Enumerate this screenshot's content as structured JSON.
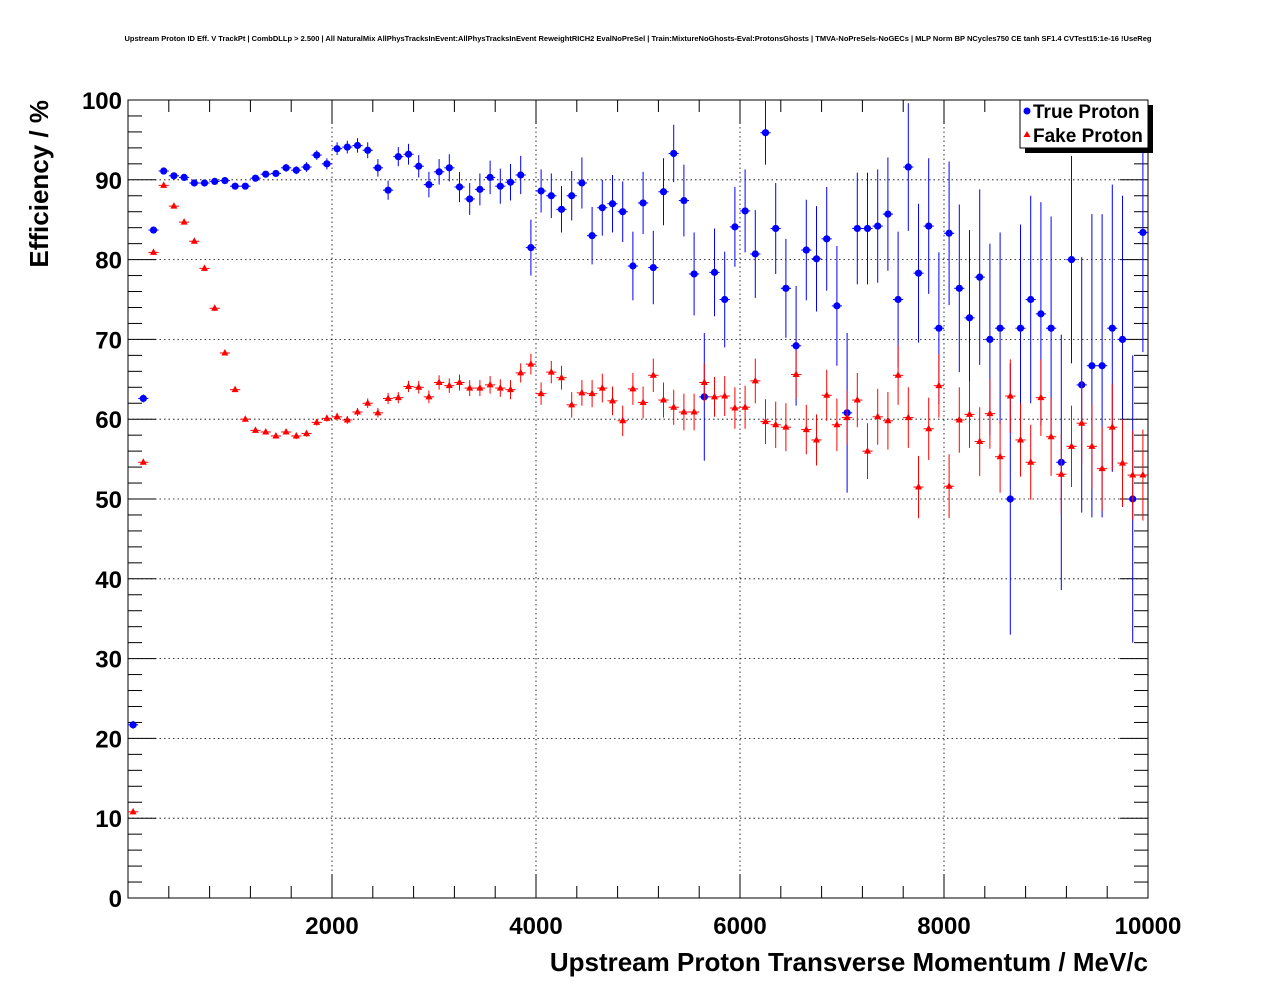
{
  "chart_data": {
    "type": "scatter",
    "title": "Upstream Proton ID Eff. V TrackPt | CombDLLp > 2.500 | All NaturalMix AllPhysTracksInEvent:AllPhysTracksInEvent ReweightRICH2 EvalNoPreSel | Train:MixtureNoGhosts-Eval:ProtonsGhosts | TMVA-NoPreSels-NoGECs | MLP Norm BP NCycles750 CE tanh SF1.4 CVTest15:1e-16 !UseReg",
    "xlabel": "Upstream Proton Transverse Momentum / MeV/c",
    "ylabel": "Efficiency / %",
    "xlim": [
      0,
      10000
    ],
    "ylim": [
      0,
      100
    ],
    "x_ticks": [
      2000,
      4000,
      6000,
      8000,
      10000
    ],
    "y_ticks": [
      0,
      10,
      20,
      30,
      40,
      50,
      60,
      70,
      80,
      90,
      100
    ],
    "grid": true,
    "legend_position": "top-right",
    "x": [
      50,
      150,
      250,
      350,
      450,
      550,
      650,
      750,
      850,
      950,
      1050,
      1150,
      1250,
      1350,
      1450,
      1550,
      1650,
      1750,
      1850,
      1950,
      2050,
      2150,
      2250,
      2350,
      2450,
      2550,
      2650,
      2750,
      2850,
      2950,
      3050,
      3150,
      3250,
      3350,
      3450,
      3550,
      3650,
      3750,
      3850,
      3950,
      4050,
      4150,
      4250,
      4350,
      4450,
      4550,
      4650,
      4750,
      4850,
      4950,
      5050,
      5150,
      5250,
      5350,
      5450,
      5550,
      5650,
      5750,
      5850,
      5950,
      6050,
      6150,
      6250,
      6350,
      6450,
      6550,
      6650,
      6750,
      6850,
      6950,
      7050,
      7150,
      7250,
      7350,
      7450,
      7550,
      7650,
      7750,
      7850,
      7950,
      8050,
      8150,
      8250,
      8350,
      8450,
      8550,
      8650,
      8750,
      8850,
      8950,
      9050,
      9150,
      9250,
      9350,
      9450,
      9550,
      9650,
      9750,
      9850,
      9950
    ],
    "series": [
      {
        "name": "True Proton",
        "color": "#0000ff",
        "marker": "circle",
        "values": [
          21.7,
          62.6,
          83.7,
          91.1,
          90.5,
          90.3,
          89.6,
          89.6,
          89.8,
          89.9,
          89.2,
          89.2,
          90.2,
          90.7,
          90.8,
          91.5,
          91.2,
          91.6,
          93.1,
          92.0,
          93.9,
          94.1,
          94.3,
          93.7,
          91.5,
          88.7,
          92.9,
          93.2,
          91.7,
          89.4,
          91.0,
          91.5,
          89.1,
          87.6,
          88.8,
          90.3,
          89.2,
          89.7,
          90.6,
          81.5,
          88.6,
          88.0,
          86.3,
          88.0,
          89.6,
          83.0,
          86.5,
          87.0,
          86.0,
          79.2,
          87.1,
          79.0,
          88.5,
          93.3,
          87.4,
          78.2,
          62.8,
          78.4,
          75.0,
          84.1,
          86.1,
          80.7,
          95.9,
          83.9,
          76.4,
          69.2,
          81.2,
          80.1,
          82.6,
          74.2,
          60.8,
          83.9,
          83.9,
          84.2,
          85.7,
          75.0,
          91.6,
          78.3,
          84.2,
          71.4,
          83.3,
          76.4,
          72.7,
          77.8,
          70.0,
          71.4,
          50.0,
          71.4,
          75.0,
          73.2,
          71.4,
          54.6,
          80.0,
          64.3,
          66.7,
          66.7,
          71.4,
          70.0,
          50.0,
          83.4
        ],
        "errors": [
          0.5,
          0.5,
          0.4,
          0.3,
          0.3,
          0.3,
          0.3,
          0.3,
          0.3,
          0.3,
          0.4,
          0.4,
          0.4,
          0.4,
          0.4,
          0.5,
          0.5,
          0.6,
          0.6,
          0.7,
          0.8,
          0.8,
          0.9,
          1.0,
          1.1,
          1.2,
          1.2,
          1.3,
          1.4,
          1.6,
          1.6,
          1.7,
          1.9,
          2.0,
          2.0,
          2.1,
          2.2,
          2.3,
          2.4,
          3.5,
          2.7,
          2.8,
          2.9,
          3.1,
          3.2,
          3.6,
          3.5,
          3.6,
          3.8,
          4.3,
          3.9,
          4.6,
          4.2,
          3.6,
          4.5,
          5.2,
          8.0,
          5.5,
          6.0,
          5.0,
          5.2,
          5.5,
          4.0,
          5.7,
          6.2,
          7.5,
          6.3,
          6.6,
          6.5,
          7.5,
          10.0,
          7.0,
          7.0,
          7.1,
          7.1,
          8.5,
          8.0,
          8.7,
          8.5,
          9.5,
          9.0,
          10.5,
          11.0,
          11.0,
          12.0,
          12.0,
          17.0,
          13.0,
          13.0,
          14.0,
          14.0,
          16.0,
          13.0,
          16.0,
          19.0,
          19.0,
          18.0,
          18.0,
          18.0,
          15.0
        ]
      },
      {
        "name": "Fake Proton",
        "color": "#ff0000",
        "marker": "triangle",
        "values": [
          10.8,
          54.6,
          80.9,
          89.3,
          86.7,
          84.7,
          82.3,
          78.9,
          73.9,
          68.3,
          63.7,
          60.0,
          58.6,
          58.4,
          57.9,
          58.4,
          57.9,
          58.2,
          59.6,
          60.1,
          60.3,
          59.9,
          60.9,
          62.0,
          60.8,
          62.6,
          62.7,
          64.1,
          64.0,
          62.8,
          64.6,
          64.2,
          64.6,
          63.9,
          63.9,
          64.3,
          63.9,
          63.7,
          65.8,
          66.9,
          63.2,
          65.9,
          65.2,
          61.8,
          63.3,
          63.2,
          63.9,
          62.3,
          59.8,
          63.8,
          62.1,
          65.5,
          62.4,
          61.5,
          60.9,
          60.9,
          64.6,
          62.8,
          62.9,
          61.4,
          61.5,
          64.8,
          59.7,
          59.3,
          59.0,
          65.6,
          58.7,
          57.4,
          63.0,
          59.3,
          60.2,
          62.4,
          56.0,
          60.3,
          59.8,
          65.5,
          60.2,
          51.5,
          58.8,
          64.2,
          51.6,
          59.9,
          60.6,
          57.2,
          60.7,
          55.3,
          62.9,
          57.4,
          54.6,
          62.7,
          57.8,
          53.1,
          56.6,
          59.5,
          56.6,
          53.8,
          59.0,
          54.5,
          53.0,
          53.0
        ],
        "errors": [
          0.3,
          0.3,
          0.3,
          0.3,
          0.3,
          0.3,
          0.3,
          0.3,
          0.3,
          0.3,
          0.3,
          0.3,
          0.3,
          0.3,
          0.3,
          0.3,
          0.4,
          0.4,
          0.4,
          0.4,
          0.5,
          0.5,
          0.5,
          0.6,
          0.6,
          0.7,
          0.7,
          0.7,
          0.8,
          0.8,
          0.9,
          0.9,
          1.0,
          1.0,
          1.0,
          1.1,
          1.1,
          1.2,
          1.2,
          1.3,
          1.4,
          1.4,
          1.5,
          1.6,
          1.6,
          1.7,
          1.8,
          1.8,
          1.9,
          2.0,
          2.0,
          2.1,
          2.2,
          2.2,
          2.3,
          2.3,
          2.4,
          2.5,
          2.5,
          2.6,
          2.7,
          2.8,
          2.8,
          2.9,
          3.0,
          3.0,
          3.1,
          3.2,
          3.2,
          3.3,
          3.4,
          3.4,
          3.5,
          3.5,
          3.6,
          3.7,
          3.8,
          3.9,
          3.9,
          4.0,
          4.0,
          4.1,
          4.2,
          4.3,
          4.4,
          4.5,
          4.6,
          4.6,
          4.7,
          4.8,
          4.9,
          5.0,
          5.1,
          5.2,
          5.3,
          5.3,
          5.4,
          5.5,
          5.6,
          5.7
        ]
      }
    ]
  }
}
